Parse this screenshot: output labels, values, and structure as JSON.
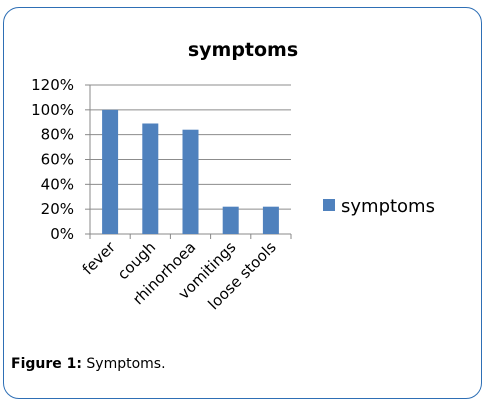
{
  "chart_data": {
    "type": "bar",
    "title": "symptoms",
    "categories": [
      "fever",
      "cough",
      "rhinorhoea",
      "vomitings",
      "loose stools"
    ],
    "series": [
      {
        "name": "symptoms",
        "values": [
          100,
          89,
          84,
          22,
          22
        ],
        "color": "#4f81bd"
      }
    ],
    "ylim": [
      0,
      120
    ],
    "yticks": [
      "0%",
      "20%",
      "40%",
      "60%",
      "80%",
      "100%",
      "120%"
    ],
    "grid": true,
    "legend": "right"
  },
  "caption": {
    "label": "Figure 1:",
    "text": "Symptoms."
  }
}
